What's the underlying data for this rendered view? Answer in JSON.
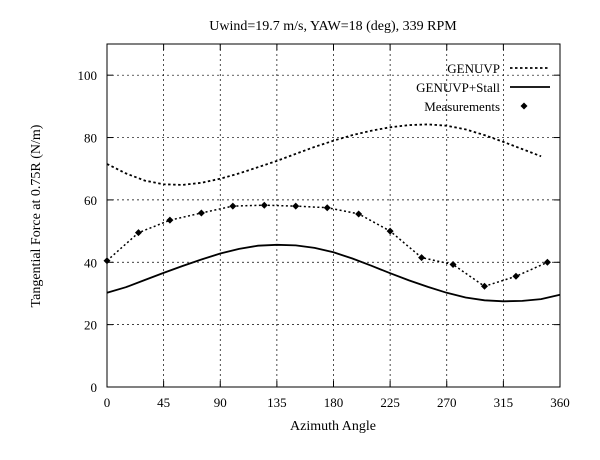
{
  "chart_data": {
    "type": "line",
    "title": "Uwind=19.7 m/s, YAW=18 (deg), 339 RPM",
    "xlabel": "Azimuth Angle",
    "ylabel": "Tangential Force at 0.75R (N/m)",
    "xlim": [
      0,
      360
    ],
    "ylim": [
      0,
      110
    ],
    "xticks": [
      0,
      45,
      90,
      135,
      180,
      225,
      270,
      315,
      360
    ],
    "yticks": [
      0,
      20,
      40,
      60,
      80,
      100
    ],
    "grid": true,
    "legend_position": "top-right",
    "series": [
      {
        "name": "GENUVP",
        "style": "dotted",
        "color": "#000000",
        "x": [
          0,
          15,
          30,
          45,
          60,
          75,
          90,
          105,
          120,
          135,
          150,
          165,
          180,
          195,
          210,
          225,
          240,
          255,
          270,
          285,
          300,
          315,
          330,
          345
        ],
        "y": [
          71.5,
          68.5,
          66.2,
          65.0,
          64.8,
          65.5,
          66.8,
          68.5,
          70.5,
          72.5,
          74.8,
          77.0,
          79.0,
          80.8,
          82.2,
          83.3,
          84.0,
          84.2,
          83.8,
          82.6,
          80.8,
          78.6,
          76.3,
          74.0
        ]
      },
      {
        "name": "GENUVP+Stall",
        "style": "solid",
        "color": "#000000",
        "x": [
          0,
          15,
          30,
          45,
          60,
          75,
          90,
          105,
          120,
          135,
          150,
          165,
          180,
          195,
          210,
          225,
          240,
          255,
          270,
          285,
          300,
          315,
          330,
          345,
          360
        ],
        "y": [
          30.2,
          32.0,
          34.3,
          36.6,
          38.8,
          40.9,
          42.8,
          44.3,
          45.3,
          45.6,
          45.4,
          44.6,
          43.2,
          41.2,
          38.9,
          36.5,
          34.2,
          32.1,
          30.2,
          28.7,
          27.8,
          27.5,
          27.6,
          28.2,
          29.6
        ]
      },
      {
        "name": "Measurements",
        "style": "dotted-with-diamonds",
        "color": "#000000",
        "x": [
          0,
          25,
          50,
          75,
          100,
          125,
          150,
          175,
          200,
          225,
          250,
          275,
          300,
          325,
          350
        ],
        "y": [
          40.5,
          49.5,
          53.5,
          55.8,
          58.0,
          58.3,
          58.0,
          57.5,
          55.5,
          50.0,
          41.5,
          39.3,
          32.3,
          35.5,
          40.0
        ]
      }
    ]
  }
}
